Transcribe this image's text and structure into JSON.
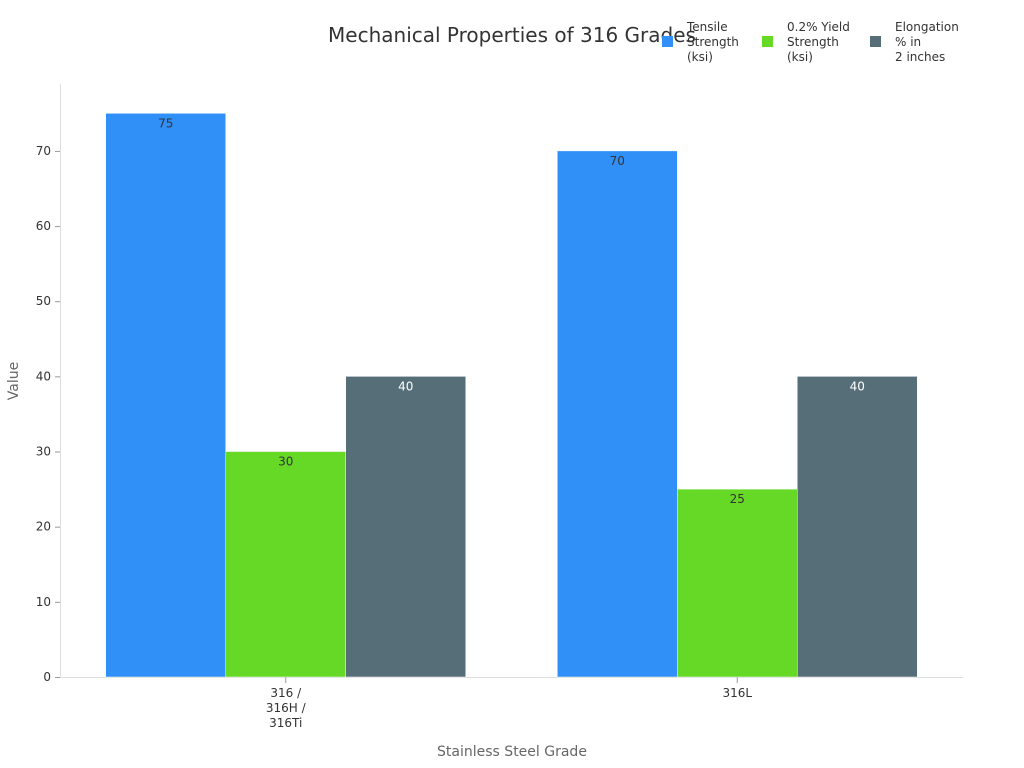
{
  "chart_data": {
    "type": "bar",
    "title": "Mechanical Properties of 316 Grades",
    "xlabel": "Stainless Steel Grade",
    "ylabel": "Value",
    "categories": [
      [
        "316 /",
        "316H /",
        "316Ti"
      ],
      [
        "316L"
      ]
    ],
    "series": [
      {
        "name": [
          "Tensile",
          "Strength",
          "(ksi)"
        ],
        "values": [
          75,
          70
        ],
        "color": "#3090f8",
        "label_color": "#333333"
      },
      {
        "name": [
          "0.2% Yield",
          "Strength",
          "(ksi)"
        ],
        "values": [
          30,
          25
        ],
        "color": "#66d926",
        "label_color": "#333333"
      },
      {
        "name": [
          "Elongation",
          "% in",
          "2 inches"
        ],
        "values": [
          40,
          40
        ],
        "color": "#566e78",
        "label_color": "#ffffff"
      }
    ],
    "ylim": [
      0,
      78.9
    ],
    "yticks": [
      0,
      10,
      20,
      30,
      40,
      50,
      60,
      70
    ],
    "grid": false,
    "legend": "top-right"
  }
}
